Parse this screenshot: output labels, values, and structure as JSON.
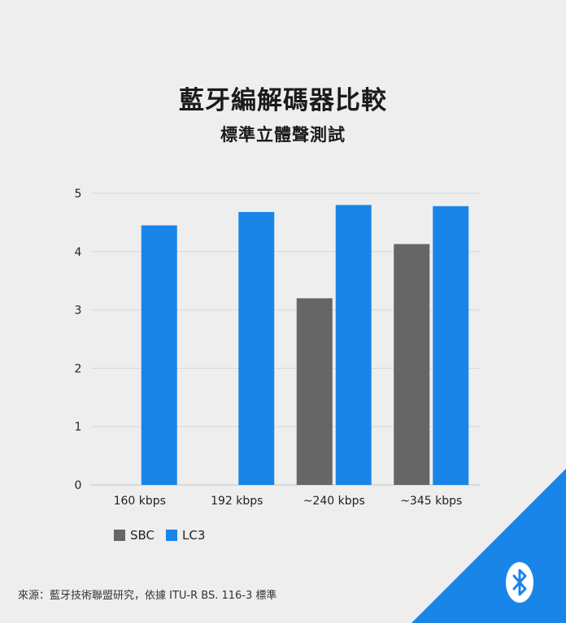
{
  "chart_data": {
    "type": "bar",
    "title": "藍牙編解碼器比較",
    "subtitle": "標準立體聲測試",
    "categories": [
      "160 kbps",
      "192 kbps",
      "~240 kbps",
      "~345 kbps"
    ],
    "series": [
      {
        "name": "SBC",
        "color": "#666666",
        "values": [
          null,
          null,
          3.2,
          4.13
        ]
      },
      {
        "name": "LC3",
        "color": "#1a85e8",
        "values": [
          4.45,
          4.68,
          4.8,
          4.78
        ]
      }
    ],
    "y_ticks": [
      "0",
      "1",
      "2",
      "3",
      "4",
      "5"
    ],
    "ylim": [
      0,
      5
    ],
    "grid": true,
    "legend_position": "bottom-left"
  },
  "source": "來源：藍牙技術聯盟研究，依據 ITU-R BS. 116-3 標準",
  "brand": {
    "icon": "bluetooth-icon",
    "corner_color": "#1a85e8"
  }
}
